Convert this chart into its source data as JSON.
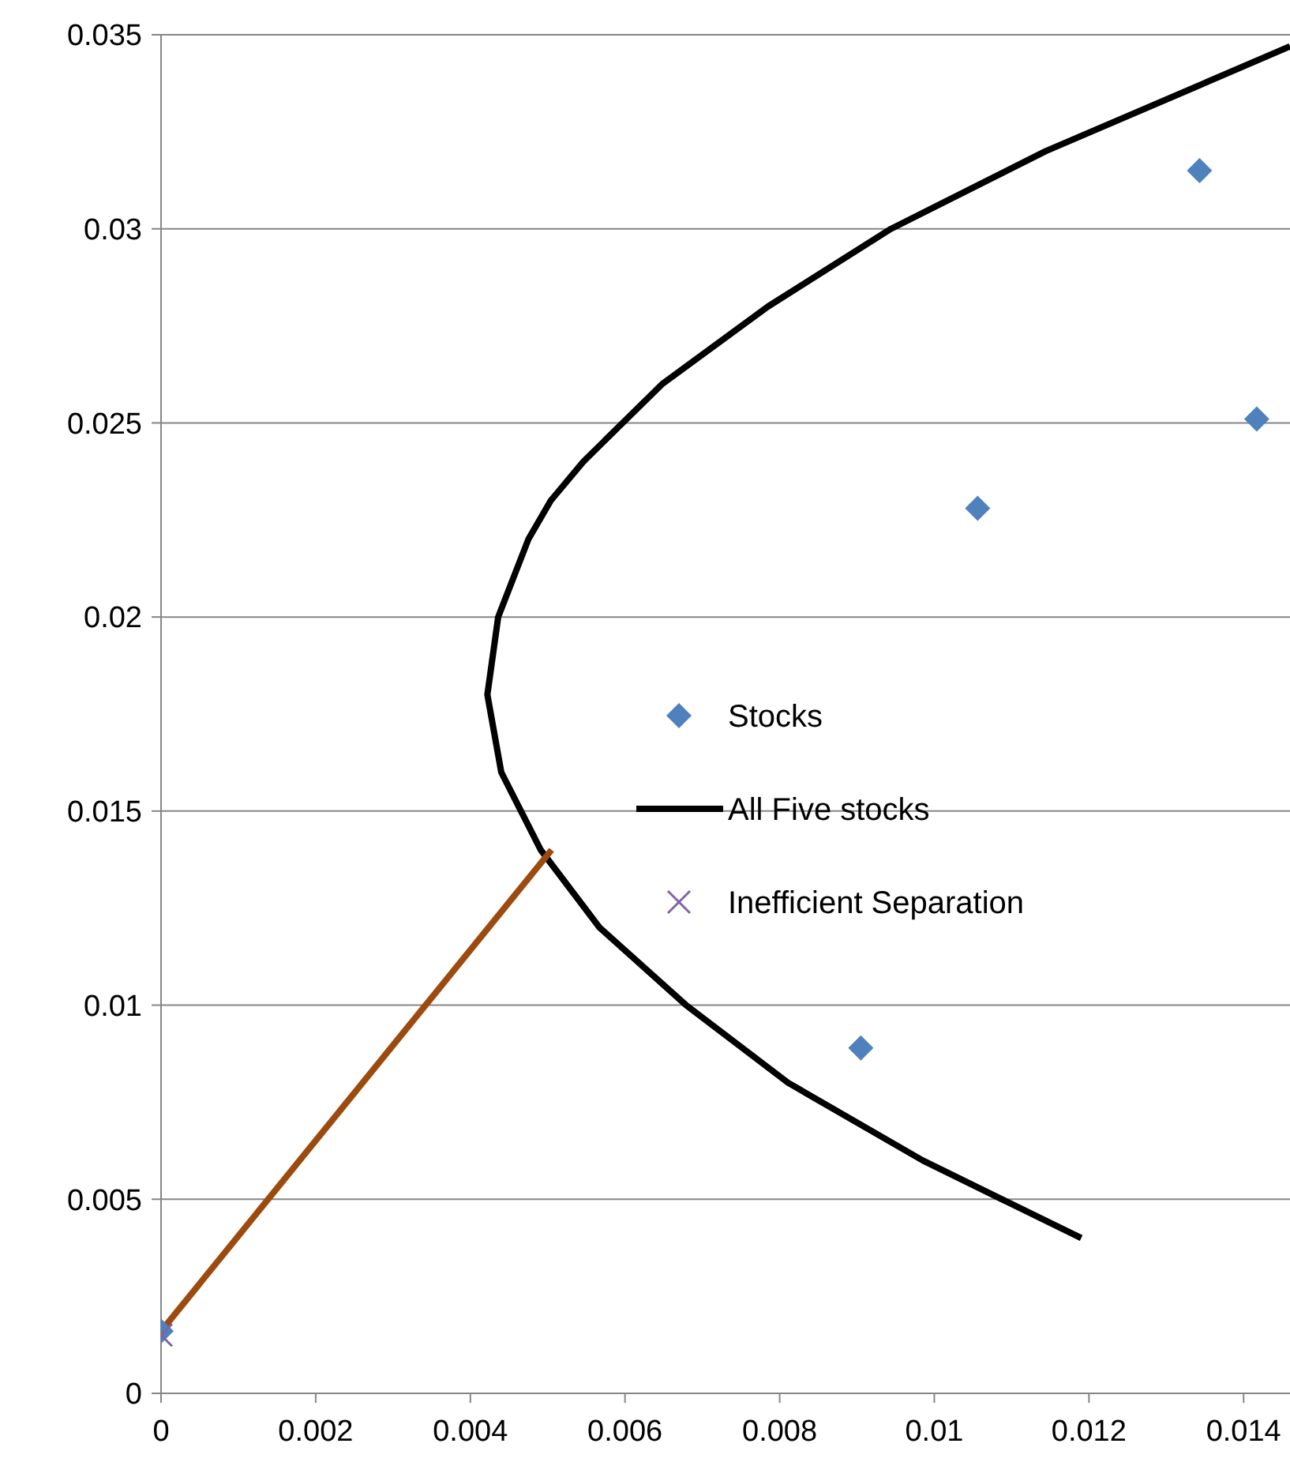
{
  "chart_data": {
    "type": "scatter",
    "xlim": [
      0,
      0.0146
    ],
    "ylim": [
      0,
      0.035
    ],
    "xticks": [
      0,
      0.002,
      0.004,
      0.006,
      0.008,
      0.01,
      0.012,
      0.014
    ],
    "yticks": [
      0,
      0.005,
      0.01,
      0.015,
      0.02,
      0.025,
      0.03,
      0.035
    ],
    "grid": "y",
    "legend": "right",
    "series": [
      {
        "name": "Stocks",
        "marker": "diamond",
        "color": "#4f81bd",
        "x": [
          0,
          0.00905,
          0.01056,
          0.01343,
          0.01417
        ],
        "values": [
          0.0016,
          0.0089,
          0.0228,
          0.0315,
          0.0251
        ]
      },
      {
        "name": "All Five stocks",
        "type": "line",
        "marker": "none",
        "color": "#000000",
        "x": [
          0.0119,
          0.00985,
          0.00811,
          0.00679,
          0.00567,
          0.00491,
          0.0044,
          0.00422,
          0.00436,
          0.00475,
          0.00504,
          0.00546,
          0.00648,
          0.00785,
          0.00944,
          0.01144,
          0.0146
        ],
        "values": [
          0.004,
          0.006,
          0.008,
          0.01,
          0.012,
          0.014,
          0.016,
          0.018,
          0.02,
          0.022,
          0.023,
          0.024,
          0.026,
          0.028,
          0.03,
          0.032,
          0.0347
        ]
      },
      {
        "name": "Inefficient Separation",
        "marker": "cross",
        "color": "#8064a2",
        "x": [
          0
        ],
        "values": [
          0.0015
        ]
      },
      {
        "type": "line",
        "marker": "none",
        "color": "#9c4a0e",
        "x": [
          0,
          0.00505
        ],
        "values": [
          0.0016,
          0.014
        ]
      }
    ]
  }
}
